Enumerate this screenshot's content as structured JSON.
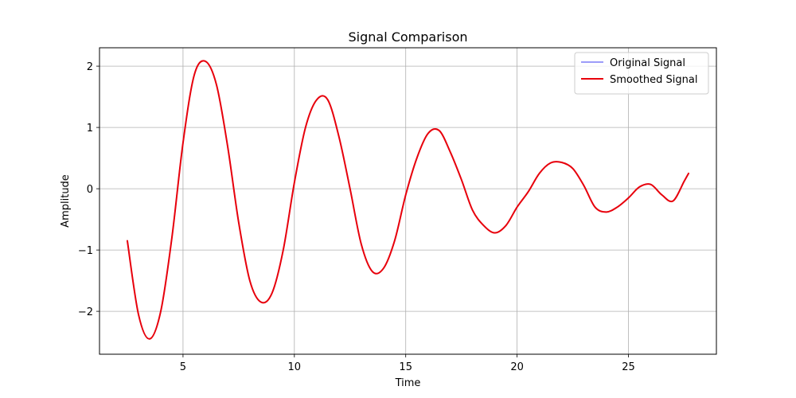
{
  "chart_data": {
    "type": "line",
    "title": "Signal Comparison",
    "xlabel": "Time",
    "ylabel": "Amplitude",
    "xlim": [
      1.25,
      28.95
    ],
    "ylim": [
      -2.7,
      2.3
    ],
    "xticks": [
      5,
      10,
      15,
      20,
      25
    ],
    "yticks": [
      -2,
      -1,
      0,
      1,
      2
    ],
    "xtick_labels": [
      "5",
      "10",
      "15",
      "20",
      "25"
    ],
    "ytick_labels": [
      "−2",
      "−1",
      "0",
      "1",
      "2"
    ],
    "grid": true,
    "legend_position": "top-right",
    "series": [
      {
        "name": "Original Signal",
        "color": "#7b7bf7",
        "x": [
          2.5,
          3.0,
          3.5,
          4.0,
          4.5,
          5.0,
          5.5,
          6.0,
          6.5,
          7.0,
          7.5,
          8.0,
          8.5,
          9.0,
          9.5,
          10.0,
          10.5,
          11.0,
          11.5,
          12.0,
          12.5,
          13.0,
          13.5,
          14.0,
          14.5,
          15.0,
          15.5,
          16.0,
          16.5,
          17.0,
          17.5,
          18.0,
          18.5,
          19.0,
          19.5,
          20.0,
          20.5,
          21.0,
          21.5,
          22.0,
          22.5,
          23.0,
          23.5,
          24.0,
          24.5,
          25.0,
          25.5,
          26.0,
          26.5,
          27.0,
          27.5,
          27.7
        ],
        "values": [
          -0.85,
          -2.05,
          -2.45,
          -2.0,
          -0.8,
          0.75,
          1.85,
          2.08,
          1.7,
          0.7,
          -0.55,
          -1.5,
          -1.85,
          -1.7,
          -1.0,
          0.1,
          1.0,
          1.45,
          1.45,
          0.85,
          0.0,
          -0.9,
          -1.35,
          -1.3,
          -0.85,
          -0.1,
          0.5,
          0.9,
          0.95,
          0.6,
          0.15,
          -0.35,
          -0.6,
          -0.72,
          -0.6,
          -0.3,
          -0.05,
          0.25,
          0.42,
          0.43,
          0.33,
          0.05,
          -0.3,
          -0.38,
          -0.3,
          -0.15,
          0.03,
          0.07,
          -0.1,
          -0.2,
          0.12,
          0.25
        ]
      },
      {
        "name": "Smoothed Signal",
        "color": "#e8000b",
        "x": [
          2.5,
          3.0,
          3.5,
          4.0,
          4.5,
          5.0,
          5.5,
          6.0,
          6.5,
          7.0,
          7.5,
          8.0,
          8.5,
          9.0,
          9.5,
          10.0,
          10.5,
          11.0,
          11.5,
          12.0,
          12.5,
          13.0,
          13.5,
          14.0,
          14.5,
          15.0,
          15.5,
          16.0,
          16.5,
          17.0,
          17.5,
          18.0,
          18.5,
          19.0,
          19.5,
          20.0,
          20.5,
          21.0,
          21.5,
          22.0,
          22.5,
          23.0,
          23.5,
          24.0,
          24.5,
          25.0,
          25.5,
          26.0,
          26.5,
          27.0,
          27.5,
          27.7
        ],
        "values": [
          -0.85,
          -2.05,
          -2.45,
          -2.0,
          -0.8,
          0.75,
          1.85,
          2.08,
          1.7,
          0.7,
          -0.55,
          -1.5,
          -1.85,
          -1.7,
          -1.0,
          0.1,
          1.0,
          1.45,
          1.45,
          0.85,
          0.0,
          -0.9,
          -1.35,
          -1.3,
          -0.85,
          -0.1,
          0.5,
          0.9,
          0.95,
          0.6,
          0.15,
          -0.35,
          -0.6,
          -0.72,
          -0.6,
          -0.3,
          -0.05,
          0.25,
          0.42,
          0.43,
          0.33,
          0.05,
          -0.3,
          -0.38,
          -0.3,
          -0.15,
          0.03,
          0.07,
          -0.1,
          -0.2,
          0.12,
          0.25
        ]
      }
    ]
  }
}
